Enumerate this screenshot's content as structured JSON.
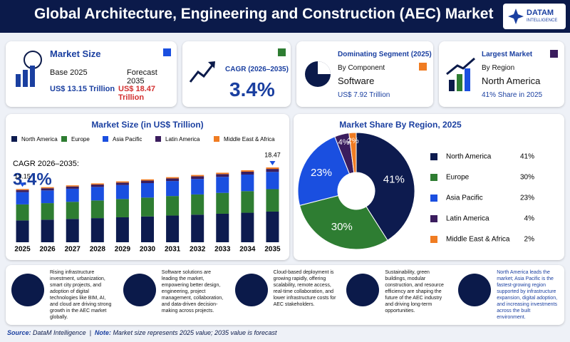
{
  "header": {
    "title": "Global Architecture, Engineering and Construction (AEC) Market",
    "logo_name": "DATAM",
    "logo_sub": "INTELLIGENCE"
  },
  "kpis": [
    {
      "title": "Market Size",
      "base_label": "Base 2025",
      "forecast_label": "Forecast 2035",
      "base_value": "US$ 13.15 Trillion",
      "forecast_value": "US$ 18.47 Trillion"
    },
    {
      "title": "CAGR (2026–2035)",
      "value": "3.4%"
    },
    {
      "title": "Dominating Segment (2025)",
      "subtitle": "By Component",
      "value": "Software",
      "detail": "US$ 7.92 Trillion"
    },
    {
      "title": "Largest Market",
      "subtitle": "By Region",
      "value": "North America",
      "detail": "41% Share in 2025"
    }
  ],
  "chart_data": [
    {
      "type": "stacked_bar",
      "title": "Market Size (in US$ Trillion)",
      "annotation_label": "CAGR 2026–2035:",
      "annotation_value": "3.4%",
      "categories": [
        "2025",
        "2026",
        "2027",
        "2028",
        "2029",
        "2030",
        "2031",
        "2032",
        "2033",
        "2034",
        "2035"
      ],
      "series": [
        {
          "name": "North America",
          "color": "#0d1b4f",
          "values": [
            5.39,
            5.58,
            5.76,
            5.96,
            6.16,
            6.37,
            6.59,
            6.81,
            7.04,
            7.29,
            7.57
          ]
        },
        {
          "name": "Europe",
          "color": "#2e7d32",
          "values": [
            3.95,
            4.08,
            4.22,
            4.36,
            4.51,
            4.66,
            4.82,
            4.99,
            5.15,
            5.33,
            5.54
          ]
        },
        {
          "name": "Asia Pacific",
          "color": "#1a4fe0",
          "values": [
            3.02,
            3.13,
            3.23,
            3.34,
            3.46,
            3.57,
            3.7,
            3.82,
            3.95,
            4.09,
            4.25
          ]
        },
        {
          "name": "Latin America",
          "color": "#3b1d5e",
          "values": [
            0.53,
            0.54,
            0.56,
            0.58,
            0.6,
            0.62,
            0.64,
            0.66,
            0.69,
            0.71,
            0.74
          ]
        },
        {
          "name": "Middle East & Africa",
          "color": "#f07c22",
          "values": [
            0.26,
            0.27,
            0.28,
            0.29,
            0.3,
            0.31,
            0.32,
            0.33,
            0.34,
            0.36,
            0.37
          ]
        }
      ],
      "totals": [
        13.15,
        null,
        null,
        null,
        null,
        null,
        null,
        null,
        null,
        null,
        18.47
      ]
    },
    {
      "type": "donut",
      "title": "Market Share By Region, 2025",
      "categories": [
        "North America",
        "Europe",
        "Asia Pacific",
        "Latin America",
        "Middle East & Africa"
      ],
      "values": [
        41,
        30,
        23,
        4,
        2
      ],
      "value_labels": [
        "41%",
        "30%",
        "23%",
        "4%",
        "2%"
      ],
      "colors": [
        "#0d1b4f",
        "#2e7d32",
        "#1a4fe0",
        "#3b1d5e",
        "#f07c22"
      ]
    }
  ],
  "insights": [
    "Rising infrastructure investment, urbanization, smart city projects, and adoption of digital technologies like BIM, AI, and cloud are driving strong growth in the AEC market globally.",
    "Software solutions are leading the market, empowering better design, engineering, project management, collaboration, and data-driven decision-making across projects.",
    "Cloud-based deployment is growing rapidly, offering scalability, remote access, real-time collaboration, and lower infrastructure costs for AEC stakeholders.",
    "Sustainability, green buildings, modular construction, and resource efficiency are shaping the future of the AEC industry and driving long-term opportunities.",
    "North America leads the market; Asia Pacific is the fastest-growing region supported by infrastructure expansion, digital adoption, and increasing investments across the built environment."
  ],
  "footer": {
    "source_label": "Source:",
    "source": "DataM Intelligence",
    "note_label": "Note:",
    "note": "Market size represents 2025 value; 2035 value is forecast"
  }
}
